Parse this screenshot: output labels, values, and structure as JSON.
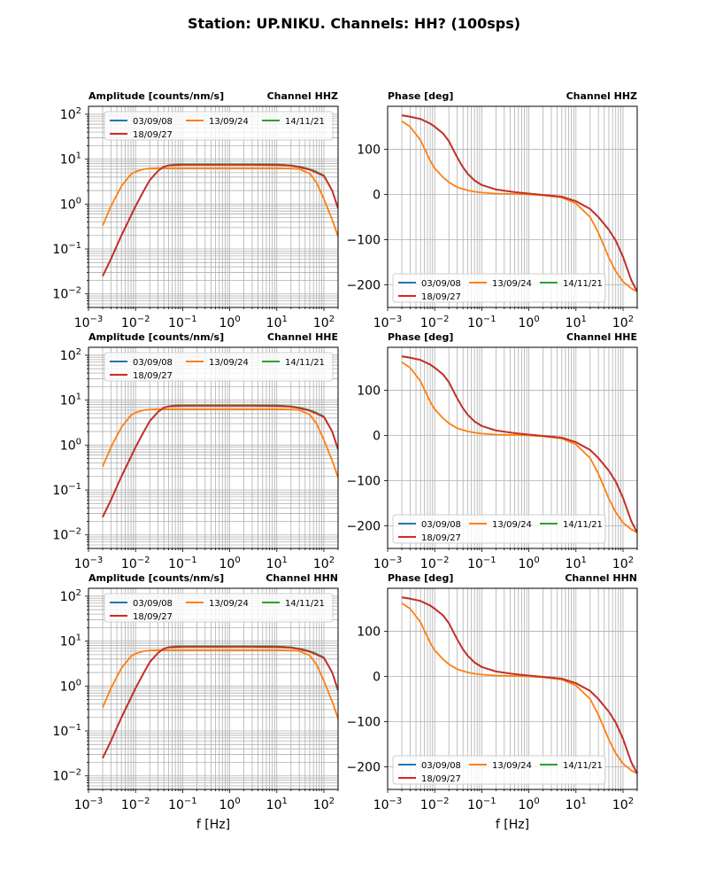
{
  "figure": {
    "suptitle": "Station: UP.NIKU. Channels: HH? (100sps)",
    "xlabel": "f [Hz]"
  },
  "colors": {
    "03/09/08": "#1f77b4",
    "13/09/24": "#ff7f0e",
    "14/11/21": "#2ca02c",
    "18/09/27": "#d62728"
  },
  "chart_data": [
    {
      "type": "line",
      "channel": "HHZ",
      "panel": "amplitude",
      "title_left": "Amplitude [counts/nm/s]",
      "title_right": "Channel HHZ",
      "xscale": "log",
      "yscale": "log",
      "xlim": [
        0.001,
        200
      ],
      "ylim": [
        0.005,
        150
      ],
      "xticks": [
        "10^-3",
        "10^-2",
        "10^-1",
        "10^0",
        "10^1",
        "10^2"
      ],
      "yticks": [
        "10^-2",
        "10^-1",
        "10^0",
        "10^1",
        "10^2"
      ],
      "grid": true,
      "legend": "top",
      "x": [
        0.002,
        0.003,
        0.005,
        0.008,
        0.01,
        0.015,
        0.02,
        0.03,
        0.04,
        0.05,
        0.07,
        0.1,
        0.3,
        1,
        3,
        10,
        20,
        30,
        50,
        70,
        100,
        150,
        200
      ],
      "series": [
        {
          "name": "03/09/08",
          "values": [
            0.025,
            0.06,
            0.2,
            0.55,
            0.9,
            2.0,
            3.4,
            5.5,
            6.8,
            7.3,
            7.6,
            7.7,
            7.7,
            7.7,
            7.7,
            7.6,
            7.3,
            6.8,
            6.0,
            5.2,
            4.3,
            2.0,
            0.8
          ]
        },
        {
          "name": "13/09/24",
          "values": [
            0.33,
            0.9,
            2.5,
            4.6,
            5.3,
            6.0,
            6.2,
            6.3,
            6.3,
            6.3,
            6.3,
            6.3,
            6.3,
            6.3,
            6.3,
            6.3,
            6.2,
            6.0,
            4.8,
            3.0,
            1.3,
            0.45,
            0.19
          ]
        },
        {
          "name": "14/11/21",
          "values": [
            0.025,
            0.06,
            0.2,
            0.55,
            0.9,
            2.0,
            3.4,
            5.5,
            6.8,
            7.3,
            7.6,
            7.7,
            7.7,
            7.7,
            7.7,
            7.6,
            7.3,
            6.8,
            6.0,
            5.2,
            4.3,
            2.0,
            0.8
          ]
        },
        {
          "name": "18/09/27",
          "values": [
            0.025,
            0.06,
            0.2,
            0.55,
            0.9,
            2.0,
            3.4,
            5.5,
            6.8,
            7.2,
            7.4,
            7.5,
            7.5,
            7.5,
            7.5,
            7.4,
            7.1,
            6.6,
            5.8,
            5.0,
            4.2,
            2.0,
            0.8
          ]
        }
      ]
    },
    {
      "type": "line",
      "channel": "HHZ",
      "panel": "phase",
      "title_left": "Phase [deg]",
      "title_right": "Channel HHZ",
      "xscale": "log",
      "yscale": "linear",
      "xlim": [
        0.001,
        200
      ],
      "ylim": [
        -250,
        195
      ],
      "xticks": [
        "10^-3",
        "10^-2",
        "10^-1",
        "10^0",
        "10^1",
        "10^2"
      ],
      "yticks": [
        -200,
        -100,
        0,
        100
      ],
      "grid": true,
      "legend": "bottom",
      "x": [
        0.002,
        0.003,
        0.005,
        0.008,
        0.01,
        0.015,
        0.02,
        0.03,
        0.04,
        0.05,
        0.07,
        0.1,
        0.2,
        0.5,
        1,
        2,
        5,
        10,
        20,
        30,
        50,
        70,
        100,
        150,
        200
      ],
      "series": [
        {
          "name": "03/09/08",
          "values": [
            175,
            172,
            167,
            157,
            150,
            135,
            118,
            82,
            60,
            46,
            31,
            21,
            11,
            5,
            2,
            -1,
            -5,
            -15,
            -32,
            -50,
            -78,
            -102,
            -138,
            -190,
            -215
          ]
        },
        {
          "name": "13/09/24",
          "values": [
            162,
            150,
            120,
            75,
            58,
            38,
            27,
            16,
            12,
            9,
            6,
            4,
            2,
            1,
            0,
            -2,
            -7,
            -20,
            -50,
            -85,
            -140,
            -170,
            -193,
            -208,
            -215
          ]
        },
        {
          "name": "14/11/21",
          "values": [
            175,
            172,
            167,
            157,
            150,
            135,
            118,
            82,
            60,
            46,
            31,
            21,
            11,
            5,
            2,
            -1,
            -5,
            -15,
            -32,
            -50,
            -78,
            -102,
            -138,
            -190,
            -215
          ]
        },
        {
          "name": "18/09/27",
          "values": [
            175,
            172,
            167,
            157,
            150,
            135,
            118,
            82,
            60,
            46,
            31,
            21,
            11,
            5,
            2,
            -1,
            -5,
            -15,
            -32,
            -50,
            -78,
            -102,
            -138,
            -190,
            -215
          ]
        }
      ]
    },
    {
      "type": "line",
      "channel": "HHE",
      "panel": "amplitude",
      "title_left": "Amplitude [counts/nm/s]",
      "title_right": "Channel HHE",
      "xscale": "log",
      "yscale": "log",
      "xlim": [
        0.001,
        200
      ],
      "ylim": [
        0.005,
        150
      ],
      "xticks": [
        "10^-3",
        "10^-2",
        "10^-1",
        "10^0",
        "10^1",
        "10^2"
      ],
      "yticks": [
        "10^-2",
        "10^-1",
        "10^0",
        "10^1",
        "10^2"
      ],
      "grid": true,
      "legend": "top",
      "x": [
        0.002,
        0.003,
        0.005,
        0.008,
        0.01,
        0.015,
        0.02,
        0.03,
        0.04,
        0.05,
        0.07,
        0.1,
        0.3,
        1,
        3,
        10,
        20,
        30,
        50,
        70,
        100,
        150,
        200
      ],
      "series": [
        {
          "name": "03/09/08",
          "values": [
            0.025,
            0.06,
            0.2,
            0.55,
            0.9,
            2.0,
            3.4,
            5.5,
            6.8,
            7.3,
            7.6,
            7.7,
            7.7,
            7.7,
            7.7,
            7.6,
            7.3,
            6.8,
            6.0,
            5.2,
            4.3,
            2.0,
            0.8
          ]
        },
        {
          "name": "13/09/24",
          "values": [
            0.33,
            0.9,
            2.5,
            4.6,
            5.3,
            6.0,
            6.2,
            6.3,
            6.3,
            6.3,
            6.3,
            6.3,
            6.3,
            6.3,
            6.3,
            6.3,
            6.2,
            6.0,
            4.8,
            3.0,
            1.3,
            0.45,
            0.19
          ]
        },
        {
          "name": "14/11/21",
          "values": [
            0.025,
            0.06,
            0.2,
            0.55,
            0.9,
            2.0,
            3.4,
            5.5,
            6.8,
            7.3,
            7.6,
            7.7,
            7.7,
            7.7,
            7.7,
            7.6,
            7.3,
            6.8,
            6.0,
            5.2,
            4.3,
            2.0,
            0.8
          ]
        },
        {
          "name": "18/09/27",
          "values": [
            0.025,
            0.06,
            0.2,
            0.55,
            0.9,
            2.0,
            3.4,
            5.5,
            6.8,
            7.2,
            7.4,
            7.5,
            7.5,
            7.5,
            7.5,
            7.4,
            7.1,
            6.6,
            5.8,
            5.0,
            4.2,
            2.0,
            0.8
          ]
        }
      ]
    },
    {
      "type": "line",
      "channel": "HHE",
      "panel": "phase",
      "title_left": "Phase [deg]",
      "title_right": "Channel HHE",
      "xscale": "log",
      "yscale": "linear",
      "xlim": [
        0.001,
        200
      ],
      "ylim": [
        -250,
        195
      ],
      "xticks": [
        "10^-3",
        "10^-2",
        "10^-1",
        "10^0",
        "10^1",
        "10^2"
      ],
      "yticks": [
        -200,
        -100,
        0,
        100
      ],
      "grid": true,
      "legend": "bottom",
      "x": [
        0.002,
        0.003,
        0.005,
        0.008,
        0.01,
        0.015,
        0.02,
        0.03,
        0.04,
        0.05,
        0.07,
        0.1,
        0.2,
        0.5,
        1,
        2,
        5,
        10,
        20,
        30,
        50,
        70,
        100,
        150,
        200
      ],
      "series": [
        {
          "name": "03/09/08",
          "values": [
            175,
            172,
            167,
            157,
            150,
            135,
            118,
            82,
            60,
            46,
            31,
            21,
            11,
            5,
            2,
            -1,
            -5,
            -15,
            -32,
            -50,
            -78,
            -102,
            -138,
            -190,
            -215
          ]
        },
        {
          "name": "13/09/24",
          "values": [
            162,
            150,
            120,
            75,
            58,
            38,
            27,
            16,
            12,
            9,
            6,
            4,
            2,
            1,
            0,
            -2,
            -7,
            -20,
            -50,
            -85,
            -140,
            -170,
            -193,
            -208,
            -215
          ]
        },
        {
          "name": "14/11/21",
          "values": [
            175,
            172,
            167,
            157,
            150,
            135,
            118,
            82,
            60,
            46,
            31,
            21,
            11,
            5,
            2,
            -1,
            -5,
            -15,
            -32,
            -50,
            -78,
            -102,
            -138,
            -190,
            -215
          ]
        },
        {
          "name": "18/09/27",
          "values": [
            175,
            172,
            167,
            157,
            150,
            135,
            118,
            82,
            60,
            46,
            31,
            21,
            11,
            5,
            2,
            -1,
            -5,
            -15,
            -32,
            -50,
            -78,
            -102,
            -138,
            -190,
            -215
          ]
        }
      ]
    },
    {
      "type": "line",
      "channel": "HHN",
      "panel": "amplitude",
      "title_left": "Amplitude [counts/nm/s]",
      "title_right": "Channel HHN",
      "xscale": "log",
      "yscale": "log",
      "xlim": [
        0.001,
        200
      ],
      "ylim": [
        0.005,
        150
      ],
      "xticks": [
        "10^-3",
        "10^-2",
        "10^-1",
        "10^0",
        "10^1",
        "10^2"
      ],
      "yticks": [
        "10^-2",
        "10^-1",
        "10^0",
        "10^1",
        "10^2"
      ],
      "grid": true,
      "legend": "top",
      "x": [
        0.002,
        0.003,
        0.005,
        0.008,
        0.01,
        0.015,
        0.02,
        0.03,
        0.04,
        0.05,
        0.07,
        0.1,
        0.3,
        1,
        3,
        10,
        20,
        30,
        50,
        70,
        100,
        150,
        200
      ],
      "series": [
        {
          "name": "03/09/08",
          "values": [
            0.025,
            0.06,
            0.2,
            0.55,
            0.9,
            2.0,
            3.4,
            5.5,
            6.8,
            7.3,
            7.6,
            7.7,
            7.7,
            7.7,
            7.7,
            7.6,
            7.3,
            6.8,
            6.0,
            5.2,
            4.3,
            2.0,
            0.8
          ]
        },
        {
          "name": "13/09/24",
          "values": [
            0.33,
            0.9,
            2.5,
            4.6,
            5.3,
            6.0,
            6.2,
            6.3,
            6.3,
            6.3,
            6.3,
            6.3,
            6.3,
            6.3,
            6.3,
            6.3,
            6.2,
            6.0,
            4.8,
            3.0,
            1.3,
            0.45,
            0.19
          ]
        },
        {
          "name": "14/11/21",
          "values": [
            0.025,
            0.06,
            0.2,
            0.55,
            0.9,
            2.0,
            3.4,
            5.5,
            6.8,
            7.3,
            7.6,
            7.7,
            7.7,
            7.7,
            7.7,
            7.6,
            7.3,
            6.8,
            6.0,
            5.2,
            4.3,
            2.0,
            0.8
          ]
        },
        {
          "name": "18/09/27",
          "values": [
            0.025,
            0.06,
            0.2,
            0.55,
            0.9,
            2.0,
            3.4,
            5.5,
            6.8,
            7.2,
            7.4,
            7.5,
            7.5,
            7.5,
            7.5,
            7.4,
            7.1,
            6.6,
            5.8,
            5.0,
            4.2,
            2.0,
            0.8
          ]
        }
      ]
    },
    {
      "type": "line",
      "channel": "HHN",
      "panel": "phase",
      "title_left": "Phase [deg]",
      "title_right": "Channel HHN",
      "xscale": "log",
      "yscale": "linear",
      "xlim": [
        0.001,
        200
      ],
      "ylim": [
        -250,
        195
      ],
      "xticks": [
        "10^-3",
        "10^-2",
        "10^-1",
        "10^0",
        "10^1",
        "10^2"
      ],
      "yticks": [
        -200,
        -100,
        0,
        100
      ],
      "grid": true,
      "legend": "bottom",
      "x": [
        0.002,
        0.003,
        0.005,
        0.008,
        0.01,
        0.015,
        0.02,
        0.03,
        0.04,
        0.05,
        0.07,
        0.1,
        0.2,
        0.5,
        1,
        2,
        5,
        10,
        20,
        30,
        50,
        70,
        100,
        150,
        200
      ],
      "series": [
        {
          "name": "03/09/08",
          "values": [
            175,
            172,
            167,
            157,
            150,
            135,
            118,
            82,
            60,
            46,
            31,
            21,
            11,
            5,
            2,
            -1,
            -5,
            -15,
            -32,
            -50,
            -78,
            -102,
            -138,
            -190,
            -215
          ]
        },
        {
          "name": "13/09/24",
          "values": [
            162,
            150,
            120,
            75,
            58,
            38,
            27,
            16,
            12,
            9,
            6,
            4,
            2,
            1,
            0,
            -2,
            -7,
            -20,
            -50,
            -85,
            -140,
            -170,
            -193,
            -208,
            -215
          ]
        },
        {
          "name": "14/11/21",
          "values": [
            175,
            172,
            167,
            157,
            150,
            135,
            118,
            82,
            60,
            46,
            31,
            21,
            11,
            5,
            2,
            -1,
            -5,
            -15,
            -32,
            -50,
            -78,
            -102,
            -138,
            -190,
            -215
          ]
        },
        {
          "name": "18/09/27",
          "values": [
            175,
            172,
            167,
            157,
            150,
            135,
            118,
            82,
            60,
            46,
            31,
            21,
            11,
            5,
            2,
            -1,
            -5,
            -15,
            -32,
            -50,
            -78,
            -102,
            -138,
            -190,
            -215
          ]
        }
      ]
    }
  ]
}
